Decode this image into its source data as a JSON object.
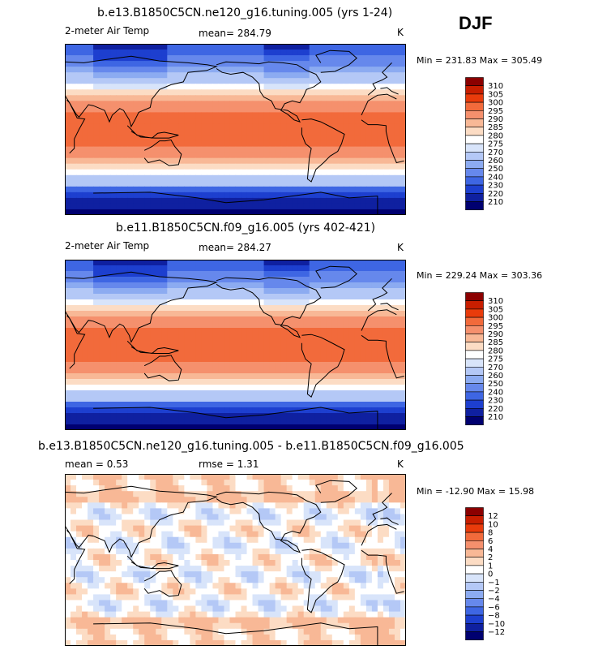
{
  "season": "DJF",
  "panels": [
    {
      "title": "b.e13.B1850C5CN.ne120_g16.tuning.005 (yrs 1-24)",
      "variable": "2-meter Air Temp",
      "mean_text": "mean= 284.79",
      "units": "K",
      "stats": "Min = 231.83  Max = 305.49",
      "colorbar": {
        "labels": [
          "310",
          "305",
          "300",
          "295",
          "290",
          "285",
          "280",
          "275",
          "270",
          "260",
          "250",
          "240",
          "230",
          "220",
          "210"
        ],
        "colors": [
          "#8b0000",
          "#c81e00",
          "#e93b0b",
          "#f26a3b",
          "#f5906d",
          "#f8b896",
          "#fcdcc4",
          "#ffffff",
          "#d8e4fa",
          "#b4c8f6",
          "#8cabf1",
          "#6688ec",
          "#3e66e3",
          "#1d3fcf",
          "#0f20a0",
          "#000070"
        ]
      },
      "field": "temp"
    },
    {
      "title": "b.e11.B1850C5CN.f09_g16.005 (yrs 402-421)",
      "variable": "2-meter Air Temp",
      "mean_text": "mean= 284.27",
      "units": "K",
      "stats": "Min = 229.24  Max = 303.36",
      "colorbar": {
        "labels": [
          "310",
          "305",
          "300",
          "295",
          "290",
          "285",
          "280",
          "275",
          "270",
          "260",
          "250",
          "240",
          "230",
          "220",
          "210"
        ],
        "colors": [
          "#8b0000",
          "#c81e00",
          "#e93b0b",
          "#f26a3b",
          "#f5906d",
          "#f8b896",
          "#fcdcc4",
          "#ffffff",
          "#d8e4fa",
          "#b4c8f6",
          "#8cabf1",
          "#6688ec",
          "#3e66e3",
          "#1d3fcf",
          "#0f20a0",
          "#000070"
        ]
      },
      "field": "temp"
    },
    {
      "title": "b.e13.B1850C5CN.ne120_g16.tuning.005 - b.e11.B1850C5CN.f09_g16.005",
      "variable": "mean =    0.53",
      "mean_text": "rmse =    1.31",
      "units": "K",
      "stats": "Min = -12.90  Max =  15.98",
      "colorbar": {
        "labels": [
          "12",
          "10",
          "8",
          "6",
          "4",
          "2",
          "1",
          "0",
          "−1",
          "−2",
          "−4",
          "−6",
          "−8",
          "−10",
          "−12"
        ],
        "colors": [
          "#8b0000",
          "#c81e00",
          "#e93b0b",
          "#f26a3b",
          "#f5906d",
          "#f8b896",
          "#fcdcc4",
          "#ffffff",
          "#d8e4fa",
          "#b4c8f6",
          "#8cabf1",
          "#6688ec",
          "#3e66e3",
          "#1d3fcf",
          "#0f20a0",
          "#000070"
        ]
      },
      "field": "diff"
    }
  ]
}
